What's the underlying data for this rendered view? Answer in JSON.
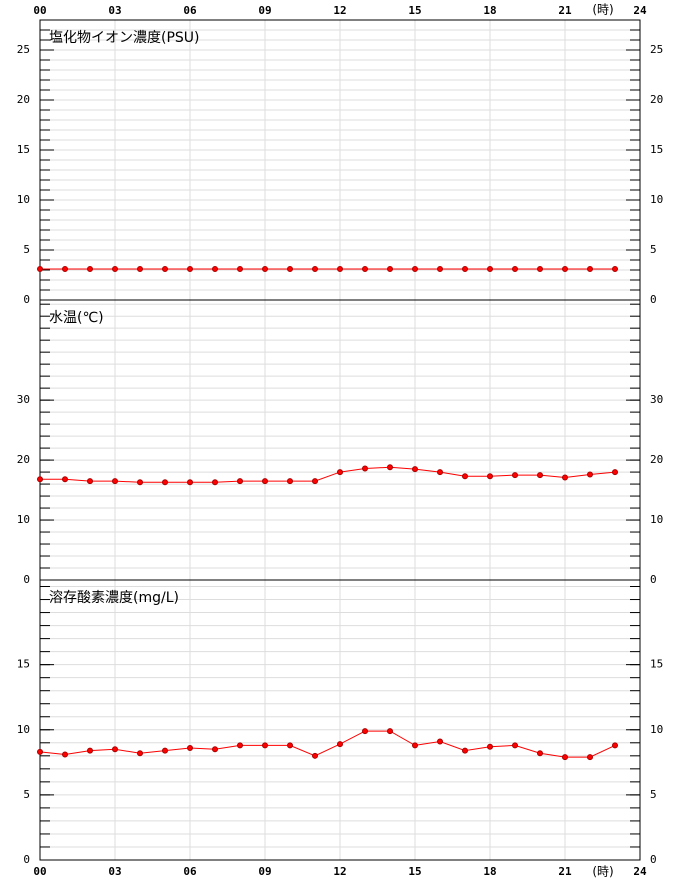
{
  "chart_data": [
    {
      "type": "line",
      "title": "塩化物イオン濃度(PSU)",
      "xlabel": "(時)",
      "xtick_labels": "top",
      "x": [
        0,
        1,
        2,
        3,
        4,
        5,
        6,
        7,
        8,
        9,
        10,
        11,
        12,
        13,
        14,
        15,
        16,
        17,
        18,
        19,
        20,
        21,
        22,
        23
      ],
      "xlim": [
        0,
        24
      ],
      "xticks": [
        {
          "value": 0,
          "label": "00"
        },
        {
          "value": 3,
          "label": "03"
        },
        {
          "value": 6,
          "label": "06"
        },
        {
          "value": 9,
          "label": "09"
        },
        12,
        15,
        18,
        21,
        24
      ],
      "ylim": [
        0,
        28
      ],
      "yticks": [
        0,
        5,
        10,
        15,
        20,
        25
      ],
      "minor_step": 1,
      "grid": true,
      "color": "#ff0000",
      "values": [
        3.1,
        3.1,
        3.1,
        3.1,
        3.1,
        3.1,
        3.1,
        3.1,
        3.1,
        3.1,
        3.1,
        3.1,
        3.1,
        3.1,
        3.1,
        3.1,
        3.1,
        3.1,
        3.1,
        3.1,
        3.1,
        3.1,
        3.1,
        3.1
      ]
    },
    {
      "type": "line",
      "title": "水温(℃)",
      "xtick_labels": "none",
      "x": [
        0,
        1,
        2,
        3,
        4,
        5,
        6,
        7,
        8,
        9,
        10,
        11,
        12,
        13,
        14,
        15,
        16,
        17,
        18,
        19,
        20,
        21,
        22,
        23
      ],
      "xlim": [
        0,
        24
      ],
      "xticks": [
        {
          "value": 0,
          "label": "00"
        },
        {
          "value": 3,
          "label": "03"
        },
        {
          "value": 6,
          "label": "06"
        },
        {
          "value": 9,
          "label": "09"
        },
        12,
        15,
        18,
        21,
        24
      ],
      "ylim": [
        0,
        46.7
      ],
      "yticks": [
        0,
        10,
        20,
        30
      ],
      "minor_step": 2,
      "grid": true,
      "color": "#ff0000",
      "values": [
        16.8,
        16.8,
        16.5,
        16.5,
        16.3,
        16.3,
        16.3,
        16.3,
        16.5,
        16.5,
        16.5,
        16.5,
        18.0,
        18.6,
        18.8,
        18.5,
        18.0,
        17.3,
        17.3,
        17.5,
        17.5,
        17.1,
        17.6,
        18.0
      ]
    },
    {
      "type": "line",
      "title": "溶存酸素濃度(mg/L)",
      "xlabel": "(時)",
      "xtick_labels": "bottom",
      "x": [
        0,
        1,
        2,
        3,
        4,
        5,
        6,
        7,
        8,
        9,
        10,
        11,
        12,
        13,
        14,
        15,
        16,
        17,
        18,
        19,
        20,
        21,
        22,
        23
      ],
      "xlim": [
        0,
        24
      ],
      "xticks": [
        {
          "value": 0,
          "label": "00"
        },
        {
          "value": 3,
          "label": "03"
        },
        {
          "value": 6,
          "label": "06"
        },
        {
          "value": 9,
          "label": "09"
        },
        12,
        15,
        18,
        21,
        24
      ],
      "ylim": [
        0,
        21.5
      ],
      "yticks": [
        0,
        5,
        10,
        15
      ],
      "minor_step": 1,
      "grid": true,
      "color": "#ff0000",
      "values": [
        8.3,
        8.1,
        8.4,
        8.5,
        8.2,
        8.4,
        8.6,
        8.5,
        8.8,
        8.8,
        8.8,
        8.0,
        8.9,
        9.9,
        9.9,
        8.8,
        9.1,
        8.4,
        8.7,
        8.8,
        8.2,
        7.9,
        7.9,
        8.8
      ]
    }
  ]
}
